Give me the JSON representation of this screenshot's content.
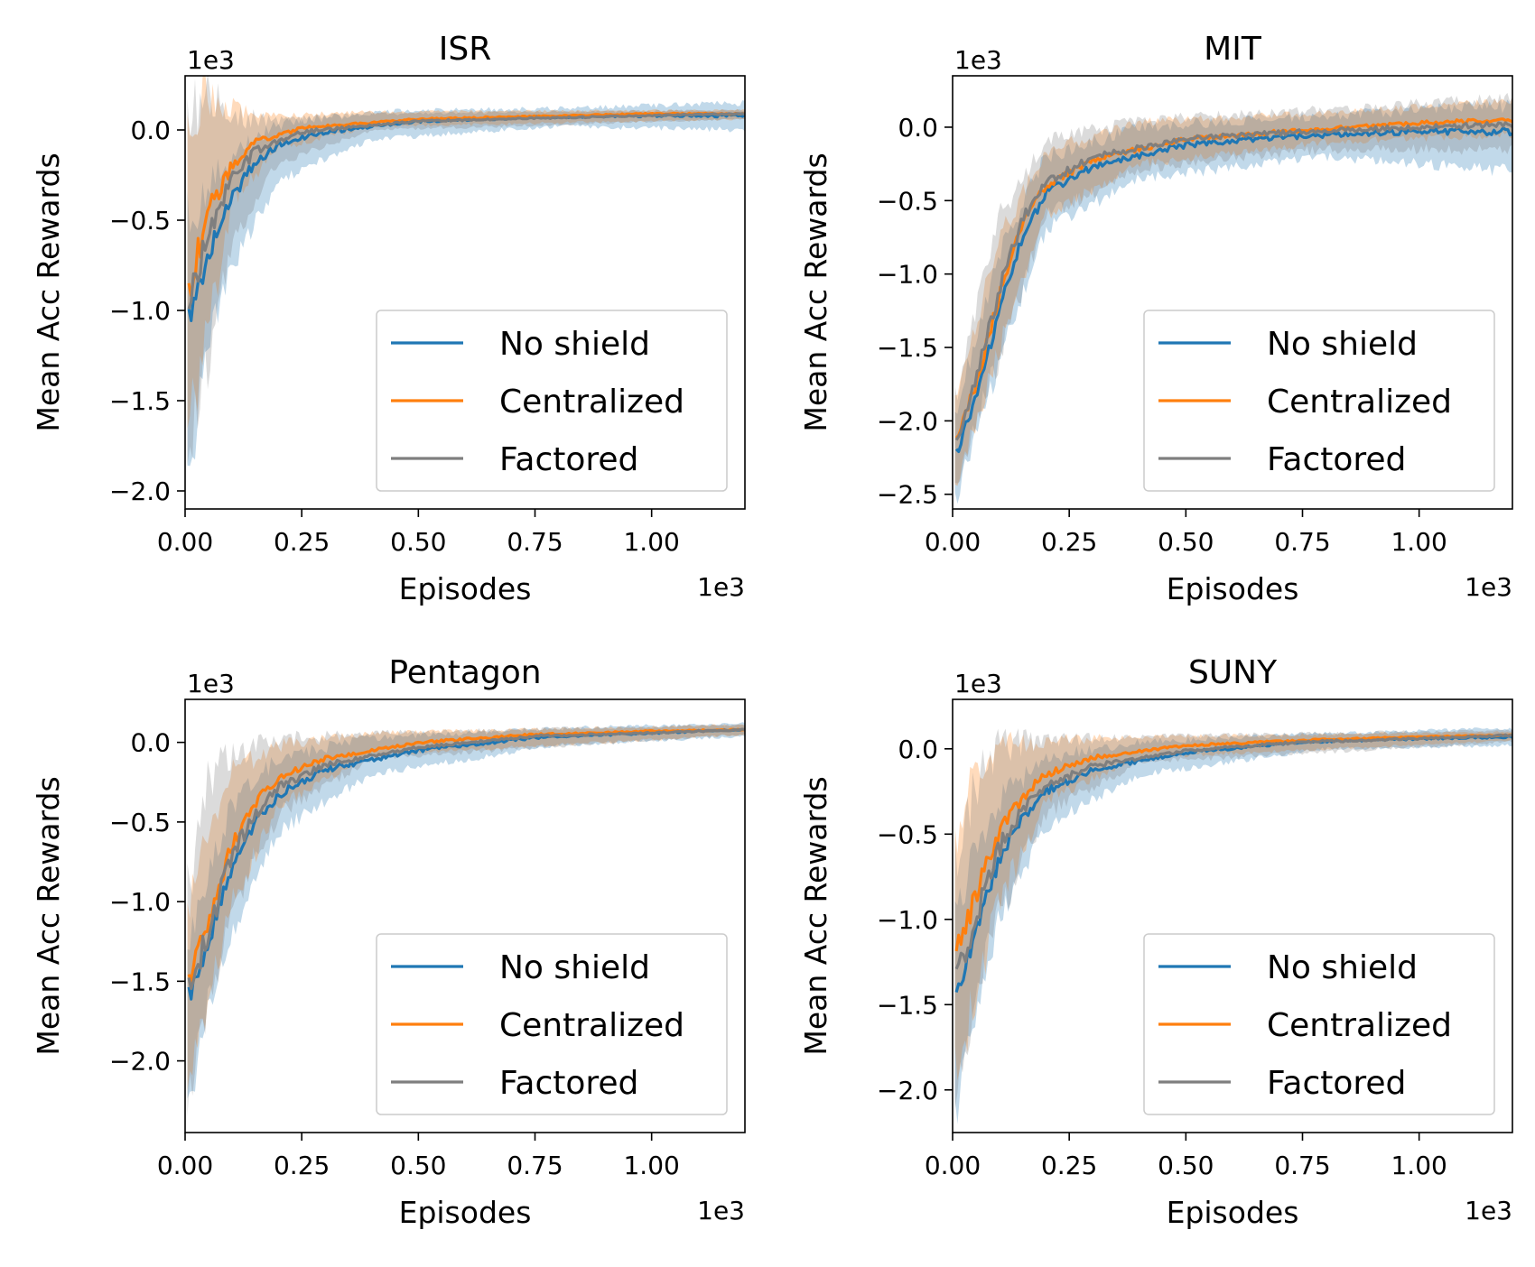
{
  "chart_data": [
    {
      "type": "line",
      "title": "ISR",
      "xlabel": "Episodes",
      "ylabel": "Mean Acc Rewards",
      "x_offset_label": "1e3",
      "y_offset_label": "1e3",
      "xlim": [
        0,
        1.2
      ],
      "ylim": [
        -2.1,
        0.3
      ],
      "xticks": [
        0.0,
        0.25,
        0.5,
        0.75,
        1.0
      ],
      "xtick_labels": [
        "0.00",
        "0.25",
        "0.50",
        "0.75",
        "1.00"
      ],
      "yticks": [
        0.0,
        -0.5,
        -1.0,
        -1.5,
        -2.0
      ],
      "ytick_labels": [
        "0.0",
        "−0.5",
        "−1.0",
        "−1.5",
        "−2.0"
      ],
      "legend": "lower-right",
      "grid": false,
      "series": [
        {
          "name": "No shield",
          "color": "#1f77b4",
          "points": [
            [
              0.01,
              -1.05
            ],
            [
              0.03,
              -0.85
            ],
            [
              0.06,
              -0.62
            ],
            [
              0.1,
              -0.38
            ],
            [
              0.15,
              -0.18
            ],
            [
              0.2,
              -0.08
            ],
            [
              0.3,
              -0.01
            ],
            [
              0.5,
              0.05
            ],
            [
              0.75,
              0.07
            ],
            [
              1.0,
              0.08
            ],
            [
              1.2,
              0.08
            ]
          ],
          "band": [
            [
              0.01,
              -1.9,
              -0.5
            ],
            [
              0.05,
              -1.15,
              -0.3
            ],
            [
              0.1,
              -0.75,
              -0.15
            ],
            [
              0.2,
              -0.28,
              0.03
            ],
            [
              0.4,
              -0.05,
              0.1
            ],
            [
              0.8,
              0.02,
              0.12
            ],
            [
              1.2,
              0.0,
              0.15
            ]
          ]
        },
        {
          "name": "Centralized",
          "color": "#ff7f0e",
          "points": [
            [
              0.01,
              -0.88
            ],
            [
              0.03,
              -0.65
            ],
            [
              0.06,
              -0.4
            ],
            [
              0.1,
              -0.2
            ],
            [
              0.15,
              -0.07
            ],
            [
              0.25,
              0.01
            ],
            [
              0.5,
              0.06
            ],
            [
              1.0,
              0.09
            ],
            [
              1.2,
              0.09
            ]
          ],
          "band": [
            [
              0.01,
              -1.65,
              0.15
            ],
            [
              0.05,
              -1.1,
              0.18
            ],
            [
              0.1,
              -0.4,
              0.12
            ],
            [
              0.2,
              -0.1,
              0.08
            ],
            [
              0.4,
              0.02,
              0.1
            ],
            [
              1.2,
              0.06,
              0.11
            ]
          ]
        },
        {
          "name": "Factored",
          "color": "#7f7f7f",
          "points": [
            [
              0.01,
              -0.95
            ],
            [
              0.03,
              -0.72
            ],
            [
              0.06,
              -0.5
            ],
            [
              0.1,
              -0.28
            ],
            [
              0.15,
              -0.12
            ],
            [
              0.25,
              -0.01
            ],
            [
              0.5,
              0.05
            ],
            [
              1.0,
              0.08
            ],
            [
              1.2,
              0.09
            ]
          ],
          "band": [
            [
              0.01,
              -1.7,
              0.1
            ],
            [
              0.05,
              -1.3,
              0.15
            ],
            [
              0.1,
              -0.6,
              0.08
            ],
            [
              0.2,
              -0.18,
              0.05
            ],
            [
              0.4,
              0.0,
              0.09
            ],
            [
              1.2,
              0.06,
              0.11
            ]
          ]
        }
      ]
    },
    {
      "type": "line",
      "title": "MIT",
      "xlabel": "Episodes",
      "ylabel": "Mean Acc Rewards",
      "x_offset_label": "1e3",
      "y_offset_label": "1e3",
      "xlim": [
        0,
        1.2
      ],
      "ylim": [
        -2.6,
        0.35
      ],
      "xticks": [
        0.0,
        0.25,
        0.5,
        0.75,
        1.0
      ],
      "xtick_labels": [
        "0.00",
        "0.25",
        "0.50",
        "0.75",
        "1.00"
      ],
      "yticks": [
        0.0,
        -0.5,
        -1.0,
        -1.5,
        -2.0,
        -2.5
      ],
      "ytick_labels": [
        "0.0",
        "−0.5",
        "−1.0",
        "−1.5",
        "−2.0",
        "−2.5"
      ],
      "legend": "lower-right",
      "grid": false,
      "series": [
        {
          "name": "No shield",
          "color": "#1f77b4",
          "points": [
            [
              0.01,
              -2.2
            ],
            [
              0.05,
              -1.85
            ],
            [
              0.1,
              -1.25
            ],
            [
              0.15,
              -0.75
            ],
            [
              0.2,
              -0.45
            ],
            [
              0.3,
              -0.27
            ],
            [
              0.5,
              -0.12
            ],
            [
              0.75,
              -0.06
            ],
            [
              1.0,
              -0.03
            ],
            [
              1.2,
              -0.03
            ]
          ],
          "band": [
            [
              0.01,
              -2.5,
              -1.9
            ],
            [
              0.1,
              -1.6,
              -0.85
            ],
            [
              0.2,
              -0.7,
              -0.2
            ],
            [
              0.4,
              -0.35,
              0.0
            ],
            [
              0.8,
              -0.2,
              0.08
            ],
            [
              1.2,
              -0.3,
              0.15
            ]
          ]
        },
        {
          "name": "Centralized",
          "color": "#ff7f0e",
          "points": [
            [
              0.01,
              -2.1
            ],
            [
              0.05,
              -1.75
            ],
            [
              0.1,
              -1.15
            ],
            [
              0.15,
              -0.65
            ],
            [
              0.2,
              -0.4
            ],
            [
              0.3,
              -0.22
            ],
            [
              0.5,
              -0.08
            ],
            [
              0.75,
              -0.02
            ],
            [
              1.0,
              0.03
            ],
            [
              1.2,
              0.05
            ]
          ],
          "band": [
            [
              0.01,
              -2.4,
              -1.8
            ],
            [
              0.1,
              -1.5,
              -0.75
            ],
            [
              0.2,
              -0.6,
              -0.15
            ],
            [
              0.4,
              -0.25,
              0.03
            ],
            [
              0.8,
              -0.1,
              0.1
            ],
            [
              1.2,
              -0.05,
              0.18
            ]
          ]
        },
        {
          "name": "Factored",
          "color": "#7f7f7f",
          "points": [
            [
              0.01,
              -2.12
            ],
            [
              0.05,
              -1.72
            ],
            [
              0.1,
              -1.1
            ],
            [
              0.15,
              -0.62
            ],
            [
              0.2,
              -0.38
            ],
            [
              0.3,
              -0.2
            ],
            [
              0.5,
              -0.08
            ],
            [
              0.75,
              -0.03
            ],
            [
              1.0,
              0.0
            ],
            [
              1.2,
              0.02
            ]
          ],
          "band": [
            [
              0.01,
              -2.4,
              -1.8
            ],
            [
              0.1,
              -1.55,
              -0.6
            ],
            [
              0.2,
              -0.6,
              -0.1
            ],
            [
              0.4,
              -0.28,
              0.05
            ],
            [
              0.8,
              -0.15,
              0.12
            ],
            [
              1.2,
              -0.15,
              0.2
            ]
          ]
        }
      ]
    },
    {
      "type": "line",
      "title": "Pentagon",
      "xlabel": "Episodes",
      "ylabel": "Mean Acc Rewards",
      "x_offset_label": "1e3",
      "y_offset_label": "1e3",
      "xlim": [
        0,
        1.2
      ],
      "ylim": [
        -2.45,
        0.27
      ],
      "xticks": [
        0.0,
        0.25,
        0.5,
        0.75,
        1.0
      ],
      "xtick_labels": [
        "0.00",
        "0.25",
        "0.50",
        "0.75",
        "1.00"
      ],
      "yticks": [
        0.0,
        -0.5,
        -1.0,
        -1.5,
        -2.0
      ],
      "ytick_labels": [
        "0.0",
        "−0.5",
        "−1.0",
        "−1.5",
        "−2.0"
      ],
      "legend": "lower-right",
      "grid": false,
      "series": [
        {
          "name": "No shield",
          "color": "#1f77b4",
          "points": [
            [
              0.01,
              -1.6
            ],
            [
              0.05,
              -1.25
            ],
            [
              0.1,
              -0.8
            ],
            [
              0.15,
              -0.5
            ],
            [
              0.2,
              -0.33
            ],
            [
              0.3,
              -0.17
            ],
            [
              0.5,
              -0.05
            ],
            [
              0.75,
              0.03
            ],
            [
              1.0,
              0.06
            ],
            [
              1.2,
              0.08
            ]
          ],
          "band": [
            [
              0.01,
              -2.3,
              -1.2
            ],
            [
              0.05,
              -1.7,
              -0.8
            ],
            [
              0.1,
              -1.2,
              -0.4
            ],
            [
              0.2,
              -0.55,
              -0.1
            ],
            [
              0.4,
              -0.2,
              0.03
            ],
            [
              0.8,
              -0.02,
              0.09
            ],
            [
              1.2,
              0.04,
              0.12
            ]
          ]
        },
        {
          "name": "Centralized",
          "color": "#ff7f0e",
          "points": [
            [
              0.01,
              -1.48
            ],
            [
              0.05,
              -1.1
            ],
            [
              0.1,
              -0.65
            ],
            [
              0.15,
              -0.38
            ],
            [
              0.2,
              -0.22
            ],
            [
              0.3,
              -0.1
            ],
            [
              0.5,
              0.0
            ],
            [
              0.75,
              0.05
            ],
            [
              1.0,
              0.07
            ],
            [
              1.2,
              0.08
            ]
          ],
          "band": [
            [
              0.01,
              -2.1,
              -1.0
            ],
            [
              0.05,
              -1.6,
              -0.5
            ],
            [
              0.1,
              -1.0,
              -0.2
            ],
            [
              0.2,
              -0.4,
              -0.02
            ],
            [
              0.4,
              -0.08,
              0.06
            ],
            [
              1.2,
              0.05,
              0.11
            ]
          ]
        },
        {
          "name": "Factored",
          "color": "#7f7f7f",
          "points": [
            [
              0.01,
              -1.55
            ],
            [
              0.05,
              -1.18
            ],
            [
              0.1,
              -0.72
            ],
            [
              0.15,
              -0.45
            ],
            [
              0.2,
              -0.28
            ],
            [
              0.3,
              -0.14
            ],
            [
              0.5,
              -0.03
            ],
            [
              0.75,
              0.04
            ],
            [
              1.0,
              0.06
            ],
            [
              1.2,
              0.08
            ]
          ],
          "band": [
            [
              0.01,
              -2.2,
              -0.9
            ],
            [
              0.05,
              -1.65,
              -0.25
            ],
            [
              0.1,
              -1.05,
              -0.05
            ],
            [
              0.2,
              -0.45,
              0.02
            ],
            [
              0.4,
              -0.1,
              0.06
            ],
            [
              1.2,
              0.05,
              0.11
            ]
          ]
        }
      ]
    },
    {
      "type": "line",
      "title": "SUNY",
      "xlabel": "Episodes",
      "ylabel": "Mean Acc Rewards",
      "x_offset_label": "1e3",
      "y_offset_label": "1e3",
      "xlim": [
        0,
        1.2
      ],
      "ylim": [
        -2.25,
        0.29
      ],
      "xticks": [
        0.0,
        0.25,
        0.5,
        0.75,
        1.0
      ],
      "xtick_labels": [
        "0.00",
        "0.25",
        "0.50",
        "0.75",
        "1.00"
      ],
      "yticks": [
        0.0,
        -0.5,
        -1.0,
        -1.5,
        -2.0
      ],
      "ytick_labels": [
        "0.0",
        "−0.5",
        "−1.0",
        "−1.5",
        "−2.0"
      ],
      "legend": "lower-right",
      "grid": false,
      "series": [
        {
          "name": "No shield",
          "color": "#1f77b4",
          "points": [
            [
              0.01,
              -1.45
            ],
            [
              0.05,
              -1.05
            ],
            [
              0.1,
              -0.65
            ],
            [
              0.15,
              -0.4
            ],
            [
              0.2,
              -0.25
            ],
            [
              0.3,
              -0.12
            ],
            [
              0.5,
              -0.02
            ],
            [
              0.75,
              0.04
            ],
            [
              1.0,
              0.06
            ],
            [
              1.2,
              0.07
            ]
          ],
          "band": [
            [
              0.01,
              -2.1,
              -0.9
            ],
            [
              0.05,
              -1.5,
              -0.6
            ],
            [
              0.1,
              -1.0,
              -0.3
            ],
            [
              0.2,
              -0.45,
              -0.05
            ],
            [
              0.4,
              -0.15,
              0.04
            ],
            [
              0.8,
              0.0,
              0.09
            ],
            [
              1.2,
              0.02,
              0.12
            ]
          ]
        },
        {
          "name": "Centralized",
          "color": "#ff7f0e",
          "points": [
            [
              0.01,
              -1.2
            ],
            [
              0.05,
              -0.85
            ],
            [
              0.1,
              -0.5
            ],
            [
              0.15,
              -0.28
            ],
            [
              0.2,
              -0.15
            ],
            [
              0.3,
              -0.05
            ],
            [
              0.5,
              0.02
            ],
            [
              0.75,
              0.05
            ],
            [
              1.0,
              0.07
            ],
            [
              1.2,
              0.08
            ]
          ],
          "band": [
            [
              0.01,
              -1.9,
              -0.5
            ],
            [
              0.05,
              -1.4,
              -0.15
            ],
            [
              0.1,
              -0.9,
              0.0
            ],
            [
              0.2,
              -0.3,
              0.05
            ],
            [
              0.4,
              -0.05,
              0.07
            ],
            [
              1.2,
              0.05,
              0.1
            ]
          ]
        },
        {
          "name": "Factored",
          "color": "#7f7f7f",
          "points": [
            [
              0.01,
              -1.35
            ],
            [
              0.05,
              -0.98
            ],
            [
              0.1,
              -0.58
            ],
            [
              0.15,
              -0.35
            ],
            [
              0.2,
              -0.22
            ],
            [
              0.3,
              -0.1
            ],
            [
              0.5,
              -0.01
            ],
            [
              0.75,
              0.04
            ],
            [
              1.0,
              0.06
            ],
            [
              1.2,
              0.08
            ]
          ],
          "band": [
            [
              0.01,
              -2.0,
              -0.6
            ],
            [
              0.05,
              -1.45,
              -0.2
            ],
            [
              0.1,
              -0.95,
              0.02
            ],
            [
              0.2,
              -0.38,
              0.05
            ],
            [
              0.4,
              -0.08,
              0.07
            ],
            [
              1.2,
              0.04,
              0.11
            ]
          ]
        }
      ]
    }
  ]
}
